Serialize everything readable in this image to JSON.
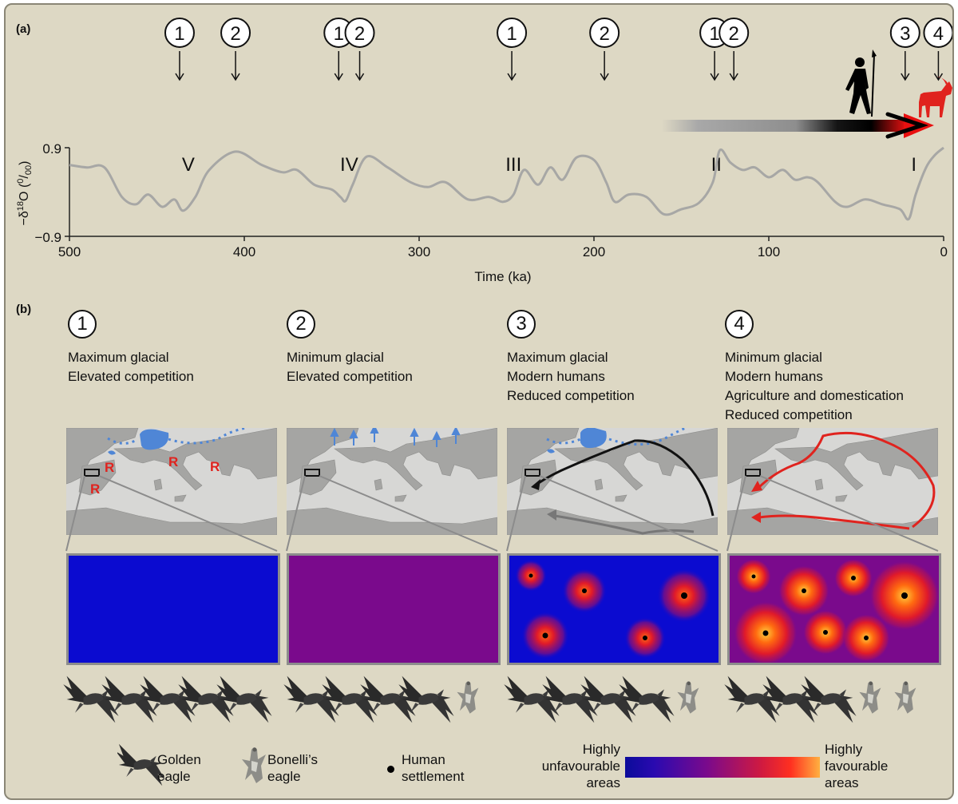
{
  "panel_a_label": "(a)",
  "panel_b_label": "(b)",
  "colors": {
    "unfavourable": "#0b0bd0",
    "neutral": "#7a0a8c",
    "favourable_mid": "#e01a2a",
    "favourable_high": "#ffbf40",
    "water": "#4f86d6",
    "refugium": "#e0231e",
    "domestic_goat": "#e0231e"
  },
  "timeline": {
    "markers": [
      {
        "label": "1",
        "time_ka": 437
      },
      {
        "label": "2",
        "time_ka": 405
      },
      {
        "label": "1",
        "time_ka": 346
      },
      {
        "label": "2",
        "time_ka": 334
      },
      {
        "label": "1",
        "time_ka": 247
      },
      {
        "label": "2",
        "time_ka": 194
      },
      {
        "label": "1",
        "time_ka": 131
      },
      {
        "label": "2",
        "time_ka": 120
      },
      {
        "label": "3",
        "time_ka": 22
      },
      {
        "label": "4",
        "time_ka": 3
      }
    ],
    "interglacials": [
      {
        "label": "V",
        "time_ka": 432
      },
      {
        "label": "IV",
        "time_ka": 340
      },
      {
        "label": "III",
        "time_ka": 246
      },
      {
        "label": "II",
        "time_ka": 130
      },
      {
        "label": "I",
        "time_ka": 17
      }
    ]
  },
  "chart_data": {
    "type": "line",
    "xlabel": "Time (ka)",
    "ylabel": "−δ18O (0/00)",
    "xlim": [
      500,
      0
    ],
    "ylim": [
      -0.9,
      0.9
    ],
    "x_ticks": [
      "500",
      "400",
      "300",
      "200",
      "100",
      "0"
    ],
    "y_ticks": [
      "0.9",
      "−0.9"
    ],
    "series": [
      {
        "x": [
          500,
          490,
          480,
          470,
          462,
          455,
          447,
          440,
          435,
          428,
          420,
          405,
          390,
          378,
          370,
          360,
          350,
          345,
          342,
          338,
          330,
          318,
          305,
          295,
          285,
          272,
          260,
          252,
          246,
          240,
          232,
          225,
          218,
          210,
          200,
          193,
          188,
          180,
          170,
          160,
          150,
          140,
          132,
          128,
          122,
          115,
          108,
          100,
          92,
          85,
          78,
          72,
          62,
          55,
          45,
          35,
          25,
          20,
          16,
          10,
          5,
          0
        ],
        "y": [
          0.55,
          0.5,
          0.5,
          -0.1,
          -0.25,
          -0.05,
          -0.3,
          -0.15,
          -0.38,
          -0.1,
          0.45,
          0.82,
          0.55,
          0.4,
          0.45,
          0.15,
          0.05,
          -0.1,
          -0.18,
          0.15,
          0.72,
          0.5,
          0.2,
          0.1,
          0.2,
          -0.15,
          -0.1,
          -0.2,
          -0.05,
          0.45,
          0.15,
          0.5,
          0.25,
          0.7,
          0.65,
          0.2,
          -0.2,
          -0.05,
          -0.1,
          -0.45,
          -0.35,
          -0.22,
          0.2,
          0.85,
          0.6,
          0.45,
          0.5,
          0.3,
          0.45,
          0.25,
          0.3,
          0.2,
          -0.2,
          -0.3,
          -0.15,
          -0.25,
          -0.35,
          -0.55,
          -0.05,
          0.5,
          0.75,
          0.9
        ]
      }
    ]
  },
  "scenarios": [
    {
      "number": "1",
      "lines": [
        "Maximum glacial",
        "Elevated competition"
      ],
      "golden_eagles": 5,
      "bonelli_eagles": 0,
      "refugium_marker": "R"
    },
    {
      "number": "2",
      "lines": [
        "Minimum glacial",
        "Elevated competition"
      ],
      "golden_eagles": 4,
      "bonelli_eagles": 1
    },
    {
      "number": "3",
      "lines": [
        "Maximum glacial",
        "Modern humans",
        "Reduced competition"
      ],
      "golden_eagles": 4,
      "bonelli_eagles": 1
    },
    {
      "number": "4",
      "lines": [
        "Minimum glacial",
        "Modern humans",
        "Agriculture and domestication",
        "Reduced competition"
      ],
      "golden_eagles": 3,
      "bonelli_eagles": 2
    }
  ],
  "legend": {
    "golden": [
      "Golden",
      "eagle"
    ],
    "bonelli": [
      "Bonelli’s",
      "eagle"
    ],
    "settlement": [
      "Human",
      "settlement"
    ],
    "unfavourable": [
      "Highly",
      "unfavourable",
      "areas"
    ],
    "favourable": [
      "Highly",
      "favourable",
      "areas"
    ]
  }
}
